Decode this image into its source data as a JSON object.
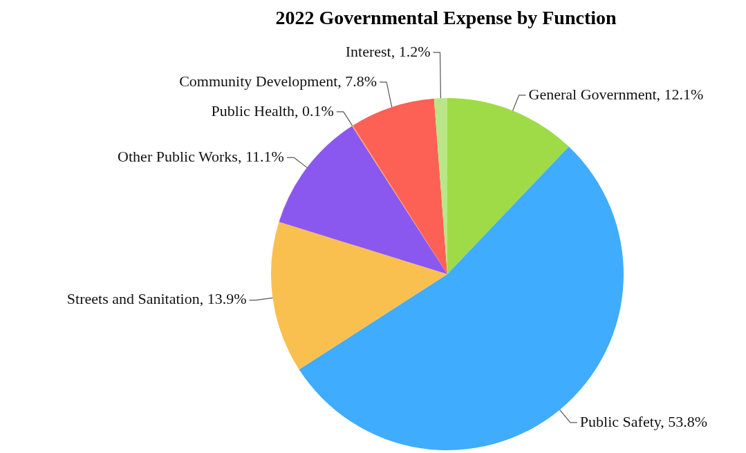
{
  "chart_data": {
    "type": "pie",
    "title": "2022 Governmental Expense by Function",
    "categories": [
      "General Government",
      "Public Safety",
      "Streets and Sanitation",
      "Other Public Works",
      "Public Health",
      "Community Development",
      "Interest"
    ],
    "values": [
      12.1,
      53.8,
      13.9,
      11.1,
      0.1,
      7.8,
      1.2
    ],
    "value_labels": [
      "12.1%",
      "53.8%",
      "13.9%",
      "11.1%",
      "0.1%",
      "7.8%",
      "1.2%"
    ],
    "colors": [
      "#9edb47",
      "#40acfd",
      "#f9c050",
      "#8b58ef",
      "#f4a261",
      "#fd6155",
      "#b9e686"
    ],
    "legend": false
  }
}
